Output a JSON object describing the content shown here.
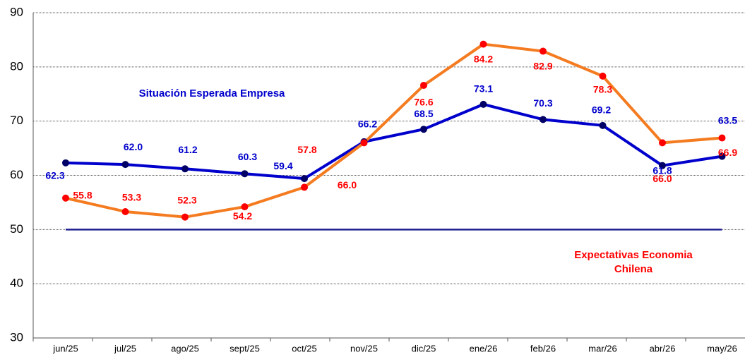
{
  "chart_data": {
    "type": "line",
    "categories": [
      "jun/25",
      "jul/25",
      "ago/25",
      "sept/25",
      "oct/25",
      "nov/25",
      "dic/25",
      "ene/26",
      "feb/26",
      "mar/26",
      "abr/26",
      "may/26"
    ],
    "series": [
      {
        "name": "Situación Esperada Empresa",
        "color": "#0000cc",
        "marker_color": "#000066",
        "label_color": "#0000cc",
        "values": [
          62.3,
          62.0,
          61.2,
          60.3,
          59.4,
          66.2,
          68.5,
          73.1,
          70.3,
          69.2,
          61.8,
          63.5
        ],
        "value_labels": [
          "62.3",
          "62.0",
          "61.2",
          "60.3",
          "59.4",
          "66.2",
          "68.5",
          "73.1",
          "70.3",
          "69.2",
          "61.8",
          "63.5"
        ]
      },
      {
        "name": "Expectativas Economia Chilena",
        "color": "#f47b20",
        "marker_color": "#ff0000",
        "label_color": "#ff0000",
        "values": [
          55.8,
          53.3,
          52.3,
          54.2,
          57.8,
          66.0,
          76.6,
          84.2,
          82.9,
          78.3,
          66.0,
          66.9
        ],
        "value_labels": [
          "55.8",
          "53.3",
          "52.3",
          "54.2",
          "57.8",
          "66.0",
          "76.6",
          "84.2",
          "82.9",
          "78.3",
          "66.0",
          "66.9"
        ]
      }
    ],
    "reference_line": {
      "value": 50,
      "color": "#1f1f8f"
    },
    "ylim": [
      30,
      90
    ],
    "yticks": [
      30,
      40,
      50,
      60,
      70,
      80,
      90
    ],
    "grid": true
  }
}
